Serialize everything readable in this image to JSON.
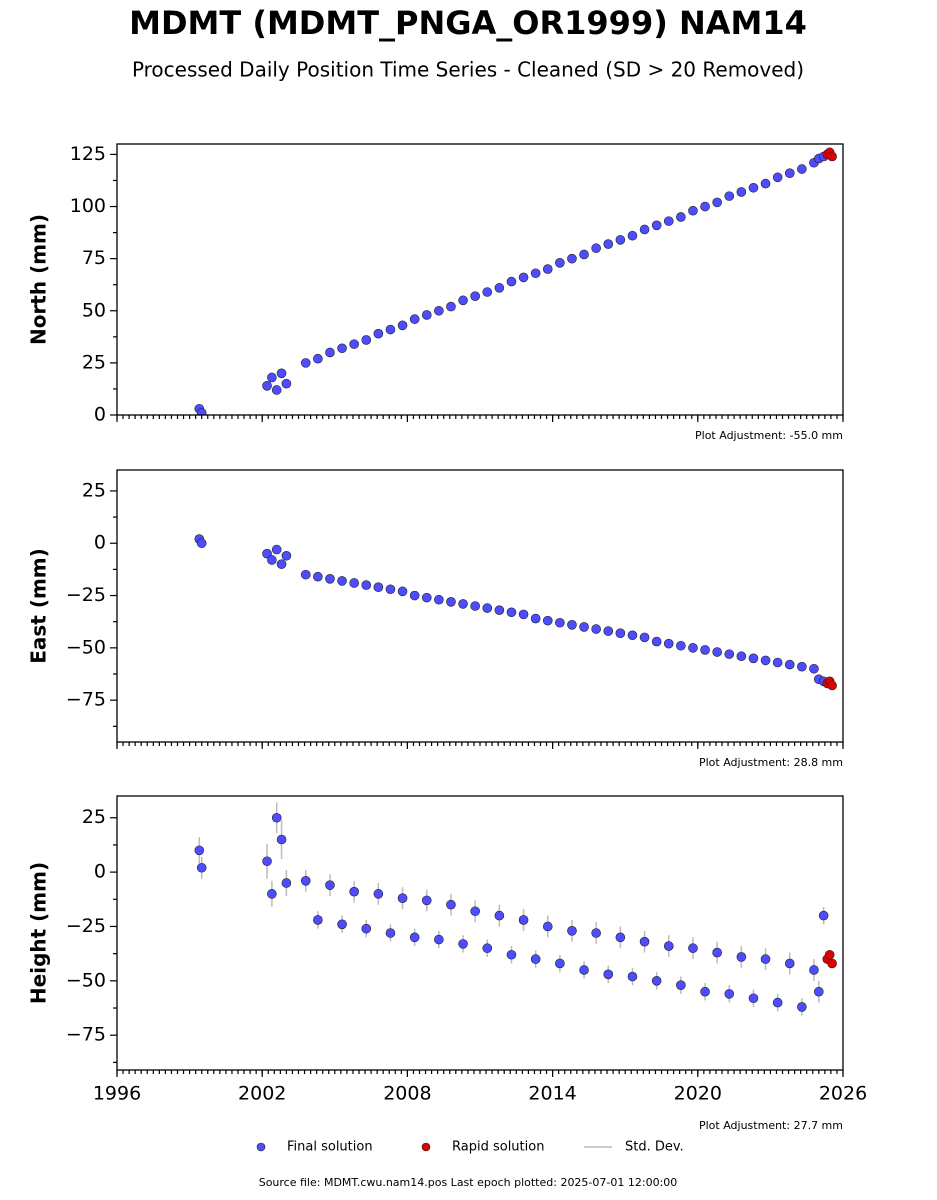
{
  "title": "MDMT (MDMT_PNGA_OR1999) NAM14",
  "subtitle": "Processed Daily Position Time Series - Cleaned (SD > 20 Removed)",
  "footer": "Source file: MDMT.cwu.nam14.pos  Last epoch plotted: 2025-07-01 12:00:00",
  "chart_data": [
    {
      "type": "scatter",
      "ylabel": "North (mm)",
      "annotation": "Plot Adjustment: -55.0 mm",
      "xlim": [
        1996,
        2026
      ],
      "xticks": [
        1996,
        2002,
        2008,
        2014,
        2020,
        2026
      ],
      "xtick_labels": false,
      "ylim": [
        0,
        130
      ],
      "yticks": [
        0,
        25,
        50,
        75,
        100,
        125
      ],
      "series": [
        {
          "name": "Final solution",
          "color": "#4d4dff",
          "x": [
            1999.4,
            1999.5,
            2002.2,
            2002.4,
            2002.6,
            2002.8,
            2003.0,
            2003.8,
            2004.3,
            2004.8,
            2005.3,
            2005.8,
            2006.3,
            2006.8,
            2007.3,
            2007.8,
            2008.3,
            2008.8,
            2009.3,
            2009.8,
            2010.3,
            2010.8,
            2011.3,
            2011.8,
            2012.3,
            2012.8,
            2013.3,
            2013.8,
            2014.3,
            2014.8,
            2015.3,
            2015.8,
            2016.3,
            2016.8,
            2017.3,
            2017.8,
            2018.3,
            2018.8,
            2019.3,
            2019.8,
            2020.3,
            2020.8,
            2021.3,
            2021.8,
            2022.3,
            2022.8,
            2023.3,
            2023.8,
            2024.3,
            2024.8,
            2025.0,
            2025.2
          ],
          "values": [
            3,
            1,
            14,
            18,
            12,
            20,
            15,
            25,
            27,
            30,
            32,
            34,
            36,
            39,
            41,
            43,
            46,
            48,
            50,
            52,
            55,
            57,
            59,
            61,
            64,
            66,
            68,
            70,
            73,
            75,
            77,
            80,
            82,
            84,
            86,
            89,
            91,
            93,
            95,
            98,
            100,
            102,
            105,
            107,
            109,
            111,
            114,
            116,
            118,
            121,
            123,
            124
          ]
        },
        {
          "name": "Rapid solution",
          "color": "#e00000",
          "x": [
            2025.35,
            2025.45,
            2025.55
          ],
          "values": [
            125,
            126,
            124
          ]
        }
      ]
    },
    {
      "type": "scatter",
      "ylabel": "East (mm)",
      "annotation": "Plot Adjustment: 28.8 mm",
      "xlim": [
        1996,
        2026
      ],
      "xticks": [
        1996,
        2002,
        2008,
        2014,
        2020,
        2026
      ],
      "xtick_labels": false,
      "ylim": [
        -95,
        35
      ],
      "yticks": [
        {
          "value": -75,
          "label": "−75"
        },
        {
          "value": -50,
          "label": "−50"
        },
        {
          "value": -25,
          "label": "−25"
        },
        0,
        25
      ],
      "series": [
        {
          "name": "Final solution",
          "color": "#4d4dff",
          "x": [
            1999.4,
            1999.5,
            2002.2,
            2002.4,
            2002.6,
            2002.8,
            2003.0,
            2003.8,
            2004.3,
            2004.8,
            2005.3,
            2005.8,
            2006.3,
            2006.8,
            2007.3,
            2007.8,
            2008.3,
            2008.8,
            2009.3,
            2009.8,
            2010.3,
            2010.8,
            2011.3,
            2011.8,
            2012.3,
            2012.8,
            2013.3,
            2013.8,
            2014.3,
            2014.8,
            2015.3,
            2015.8,
            2016.3,
            2016.8,
            2017.3,
            2017.8,
            2018.3,
            2018.8,
            2019.3,
            2019.8,
            2020.3,
            2020.8,
            2021.3,
            2021.8,
            2022.3,
            2022.8,
            2023.3,
            2023.8,
            2024.3,
            2024.8,
            2025.0,
            2025.2
          ],
          "values": [
            2,
            0,
            -5,
            -8,
            -3,
            -10,
            -6,
            -15,
            -16,
            -17,
            -18,
            -19,
            -20,
            -21,
            -22,
            -23,
            -25,
            -26,
            -27,
            -28,
            -29,
            -30,
            -31,
            -32,
            -33,
            -34,
            -36,
            -37,
            -38,
            -39,
            -40,
            -41,
            -42,
            -43,
            -44,
            -45,
            -47,
            -48,
            -49,
            -50,
            -51,
            -52,
            -53,
            -54,
            -55,
            -56,
            -57,
            -58,
            -59,
            -60,
            -65,
            -66
          ]
        },
        {
          "name": "Rapid solution",
          "color": "#e00000",
          "x": [
            2025.35,
            2025.45,
            2025.55
          ],
          "values": [
            -67,
            -66,
            -68
          ]
        }
      ]
    },
    {
      "type": "scatter",
      "ylabel": "Height (mm)",
      "annotation": "Plot Adjustment: 27.7 mm",
      "xlim": [
        1996,
        2026
      ],
      "xticks": [
        1996,
        2002,
        2008,
        2014,
        2020,
        2026
      ],
      "xtick_labels": true,
      "ylim": [
        -91,
        35
      ],
      "yticks": [
        {
          "value": -75,
          "label": "−75"
        },
        {
          "value": -50,
          "label": "−50"
        },
        {
          "value": -25,
          "label": "−25"
        },
        0,
        25
      ],
      "errorbar": {
        "name": "Std. Dev.",
        "color": "#bbbbbb"
      },
      "series": [
        {
          "name": "Final solution",
          "color": "#4d4dff",
          "x": [
            1999.4,
            1999.5,
            2002.2,
            2002.4,
            2002.6,
            2002.8,
            2003.0,
            2003.8,
            2004.3,
            2004.8,
            2005.3,
            2005.8,
            2006.3,
            2006.8,
            2007.3,
            2007.8,
            2008.3,
            2008.8,
            2009.3,
            2009.8,
            2010.3,
            2010.8,
            2011.3,
            2011.8,
            2012.3,
            2012.8,
            2013.3,
            2013.8,
            2014.3,
            2014.8,
            2015.3,
            2015.8,
            2016.3,
            2016.8,
            2017.3,
            2017.8,
            2018.3,
            2018.8,
            2019.3,
            2019.8,
            2020.3,
            2020.8,
            2021.3,
            2021.8,
            2022.3,
            2022.8,
            2023.3,
            2023.8,
            2024.3,
            2024.8,
            2025.0,
            2025.2
          ],
          "values": [
            10,
            2,
            5,
            -10,
            25,
            15,
            -5,
            -4,
            -22,
            -6,
            -24,
            -9,
            -26,
            -10,
            -28,
            -12,
            -30,
            -13,
            -31,
            -15,
            -33,
            -18,
            -35,
            -20,
            -38,
            -22,
            -40,
            -25,
            -42,
            -27,
            -45,
            -28,
            -47,
            -30,
            -48,
            -32,
            -50,
            -34,
            -52,
            -35,
            -55,
            -37,
            -56,
            -39,
            -58,
            -40,
            -60,
            -42,
            -62,
            -45,
            -55,
            -20
          ],
          "errors": [
            6,
            5,
            8,
            6,
            7,
            9,
            6,
            5,
            4,
            5,
            4,
            5,
            4,
            5,
            4,
            5,
            4,
            5,
            4,
            5,
            4,
            5,
            4,
            5,
            4,
            5,
            4,
            5,
            4,
            5,
            4,
            5,
            4,
            5,
            4,
            5,
            4,
            5,
            4,
            5,
            4,
            5,
            4,
            5,
            4,
            5,
            4,
            5,
            4,
            5,
            5,
            4
          ]
        },
        {
          "name": "Rapid solution",
          "color": "#e00000",
          "x": [
            2025.35,
            2025.45,
            2025.55
          ],
          "values": [
            -40,
            -38,
            -42
          ]
        }
      ]
    }
  ]
}
